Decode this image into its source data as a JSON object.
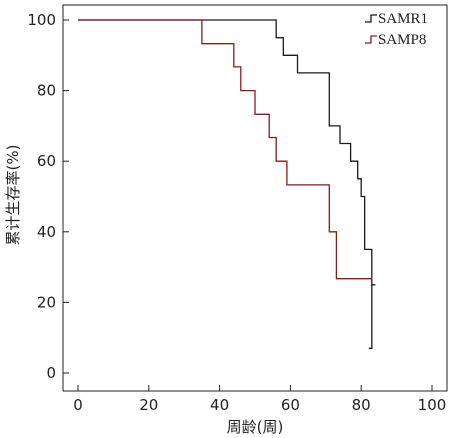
{
  "chart_data": {
    "type": "line",
    "xlabel": "周龄(周)",
    "ylabel": "累计生存率(%)",
    "xlim": [
      0,
      100
    ],
    "ylim": [
      0,
      100
    ],
    "xticks": [
      "0",
      "20",
      "40",
      "60",
      "80",
      "100"
    ],
    "yticks": [
      "0",
      "20",
      "40",
      "60",
      "80",
      "100"
    ],
    "grid": false,
    "legend_position": "top-right",
    "series": [
      {
        "name": "SAMR1",
        "color": "#1a1a1a",
        "step": true,
        "points": [
          [
            0,
            100
          ],
          [
            56,
            100
          ],
          [
            56,
            95
          ],
          [
            58,
            95
          ],
          [
            58,
            90
          ],
          [
            62,
            90
          ],
          [
            62,
            85
          ],
          [
            71,
            85
          ],
          [
            71,
            70
          ],
          [
            74,
            70
          ],
          [
            74,
            65
          ],
          [
            77,
            65
          ],
          [
            77,
            60
          ],
          [
            79,
            60
          ],
          [
            79,
            55
          ],
          [
            80,
            55
          ],
          [
            80,
            50
          ],
          [
            81,
            50
          ],
          [
            81,
            35
          ],
          [
            83,
            35
          ],
          [
            83,
            25
          ],
          [
            84,
            25
          ]
        ]
      },
      {
        "name": "SAMP8",
        "color": "#8b1a1a",
        "step": true,
        "points": [
          [
            0,
            100
          ],
          [
            35,
            100
          ],
          [
            35,
            93.3
          ],
          [
            44,
            93.3
          ],
          [
            44,
            86.7
          ],
          [
            46,
            86.7
          ],
          [
            46,
            80
          ],
          [
            50,
            80
          ],
          [
            50,
            73.3
          ],
          [
            54,
            73.3
          ],
          [
            54,
            66.7
          ],
          [
            56,
            66.7
          ],
          [
            56,
            60
          ],
          [
            59,
            60
          ],
          [
            59,
            53.3
          ],
          [
            71,
            53.3
          ],
          [
            71,
            40
          ],
          [
            73,
            40
          ],
          [
            73,
            26.7
          ],
          [
            83,
            26.7
          ]
        ]
      }
    ],
    "extra_drop": {
      "series": "SAMR1",
      "x": 83,
      "from": 25,
      "to": 7
    }
  }
}
